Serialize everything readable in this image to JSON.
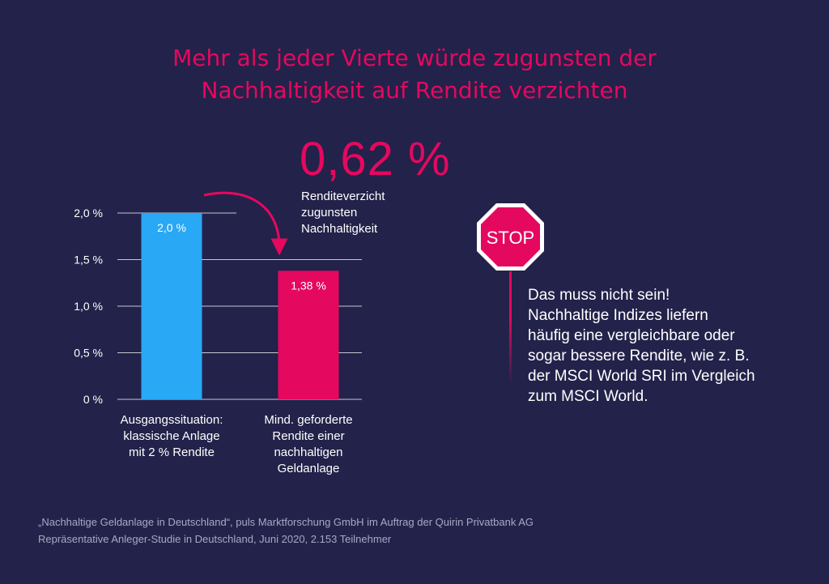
{
  "title_line1": "Mehr als jeder Vierte würde zugunsten der",
  "title_line2": "Nachhaltigkeit auf Rendite verzichten",
  "highlight": {
    "value": "0,62 %",
    "caption_lines": [
      "Renditeverzicht",
      "zugunsten",
      "Nachhaltigkeit"
    ]
  },
  "stop_sign": {
    "text": "STOP"
  },
  "message_lines": [
    "Das muss nicht sein!",
    "Nachhaltige Indizes liefern",
    "häufig eine vergleichbare oder",
    "sogar bessere Rendite, wie z. B.",
    "der MSCI World SRI im Vergleich",
    "zum MSCI World."
  ],
  "source_lines": [
    "„Nachhaltige Geldanlage in Deutschland“, puls Marktforschung GmbH im Auftrag der Quirin Privatbank AG",
    "Repräsentative Anleger-Studie in Deutschland, Juni 2020, 2.153 Teilnehmer"
  ],
  "colors": {
    "background": "#23224a",
    "accent": "#e5085f",
    "bar_classic": "#29a8f5",
    "bar_sustainable": "#e5085f"
  },
  "chart_data": {
    "type": "bar",
    "categories": [
      "Ausgangssituation: klassische Anlage mit 2 % Rendite",
      "Mind. geforderte Rendite einer nachhaltigen Geldanlage"
    ],
    "category_label_lines": [
      [
        "Ausgangssituation:",
        "klassische Anlage",
        "mit 2 % Rendite"
      ],
      [
        "Mind. geforderte",
        "Rendite einer",
        "nachhaltigen",
        "Geldanlage"
      ]
    ],
    "values": [
      2.0,
      1.38
    ],
    "value_labels": [
      "2,0 %",
      "1,38 %"
    ],
    "bar_colors": [
      "#29a8f5",
      "#e5085f"
    ],
    "yticks": [
      0,
      0.5,
      1.0,
      1.5,
      2.0
    ],
    "ytick_labels": [
      "0 %",
      "0,5 %",
      "1,0 %",
      "1,5 %",
      "2,0 %"
    ],
    "ylim": [
      0,
      2.0
    ],
    "grid": true,
    "annotation": "0,62 %"
  }
}
